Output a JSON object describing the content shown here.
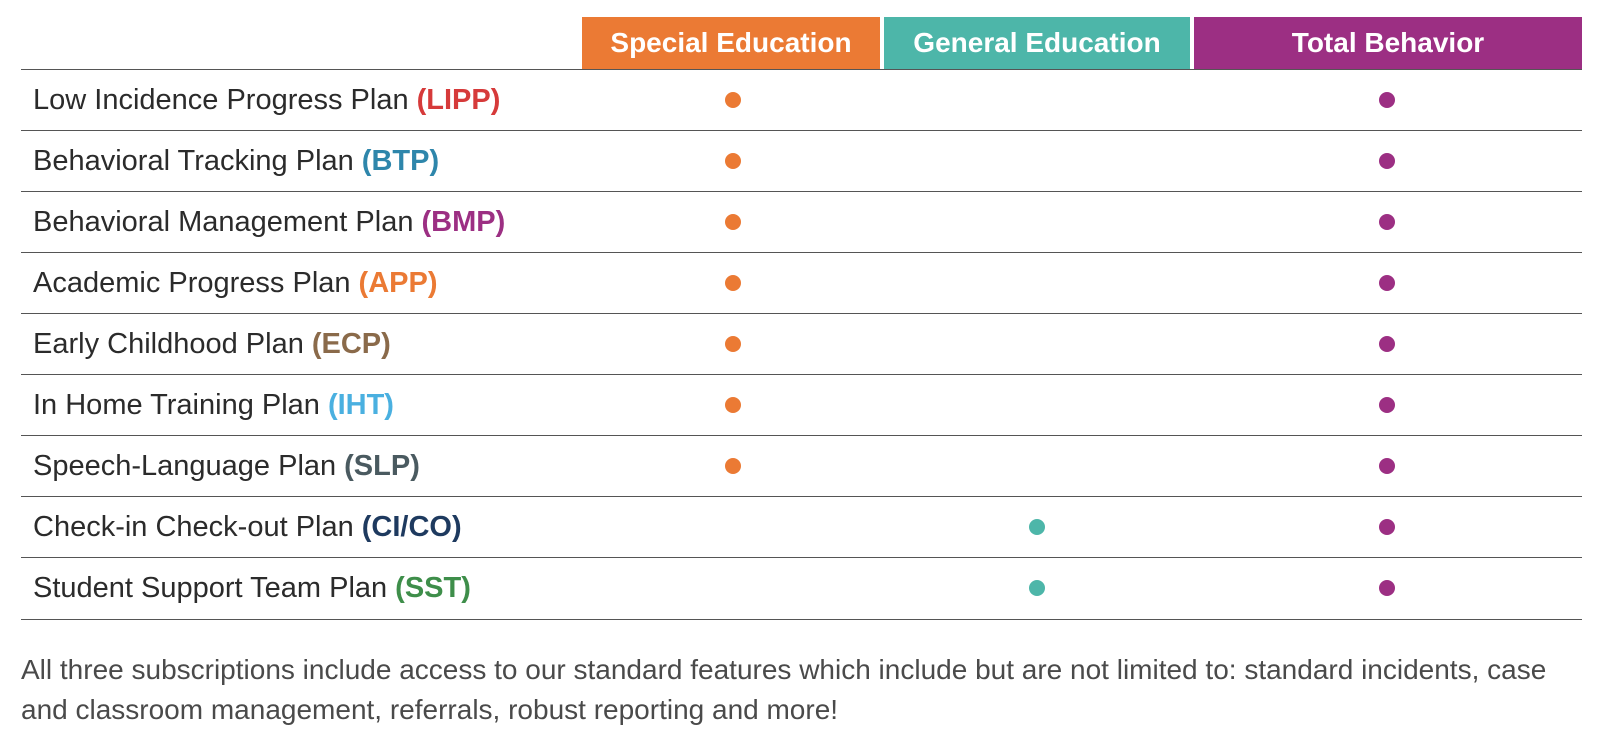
{
  "columns": [
    {
      "label": "Special Education",
      "color": "#EB7A34"
    },
    {
      "label": "General Education",
      "color": "#4DB6A9"
    },
    {
      "label": "Total Behavior",
      "color": "#9C2F83"
    }
  ],
  "rows": [
    {
      "name": "Low Incidence Progress Plan",
      "abbr": "(LIPP)",
      "abbr_color": "#D63A3A",
      "special_education": true,
      "general_education": false,
      "total_behavior": true
    },
    {
      "name": "Behavioral Tracking Plan",
      "abbr": "(BTP)",
      "abbr_color": "#2E86AB",
      "special_education": true,
      "general_education": false,
      "total_behavior": true
    },
    {
      "name": "Behavioral Management Plan",
      "abbr": "(BMP)",
      "abbr_color": "#9C2F83",
      "special_education": true,
      "general_education": false,
      "total_behavior": true
    },
    {
      "name": "Academic Progress Plan",
      "abbr": "(APP)",
      "abbr_color": "#EB7A34",
      "special_education": true,
      "general_education": false,
      "total_behavior": true
    },
    {
      "name": "Early Childhood Plan",
      "abbr": "(ECP)",
      "abbr_color": "#8A6A4A",
      "special_education": true,
      "general_education": false,
      "total_behavior": true
    },
    {
      "name": "In Home Training Plan",
      "abbr": "(IHT)",
      "abbr_color": "#4AB0E0",
      "special_education": true,
      "general_education": false,
      "total_behavior": true
    },
    {
      "name": "Speech-Language Plan",
      "abbr": "(SLP)",
      "abbr_color": "#4A5A60",
      "special_education": true,
      "general_education": false,
      "total_behavior": true
    },
    {
      "name": "Check-in Check-out Plan",
      "abbr": "(CI/CO)",
      "abbr_color": "#1E3A5F",
      "special_education": false,
      "general_education": true,
      "total_behavior": true
    },
    {
      "name": "Student Support Team Plan",
      "abbr": "(SST)",
      "abbr_color": "#3E8E4A",
      "special_education": false,
      "general_education": true,
      "total_behavior": true
    }
  ],
  "footer": {
    "text": "All three subscriptions include access to our standard features which include but are not limited to: standard incidents, case and classroom management, referrals, robust reporting and more!"
  }
}
